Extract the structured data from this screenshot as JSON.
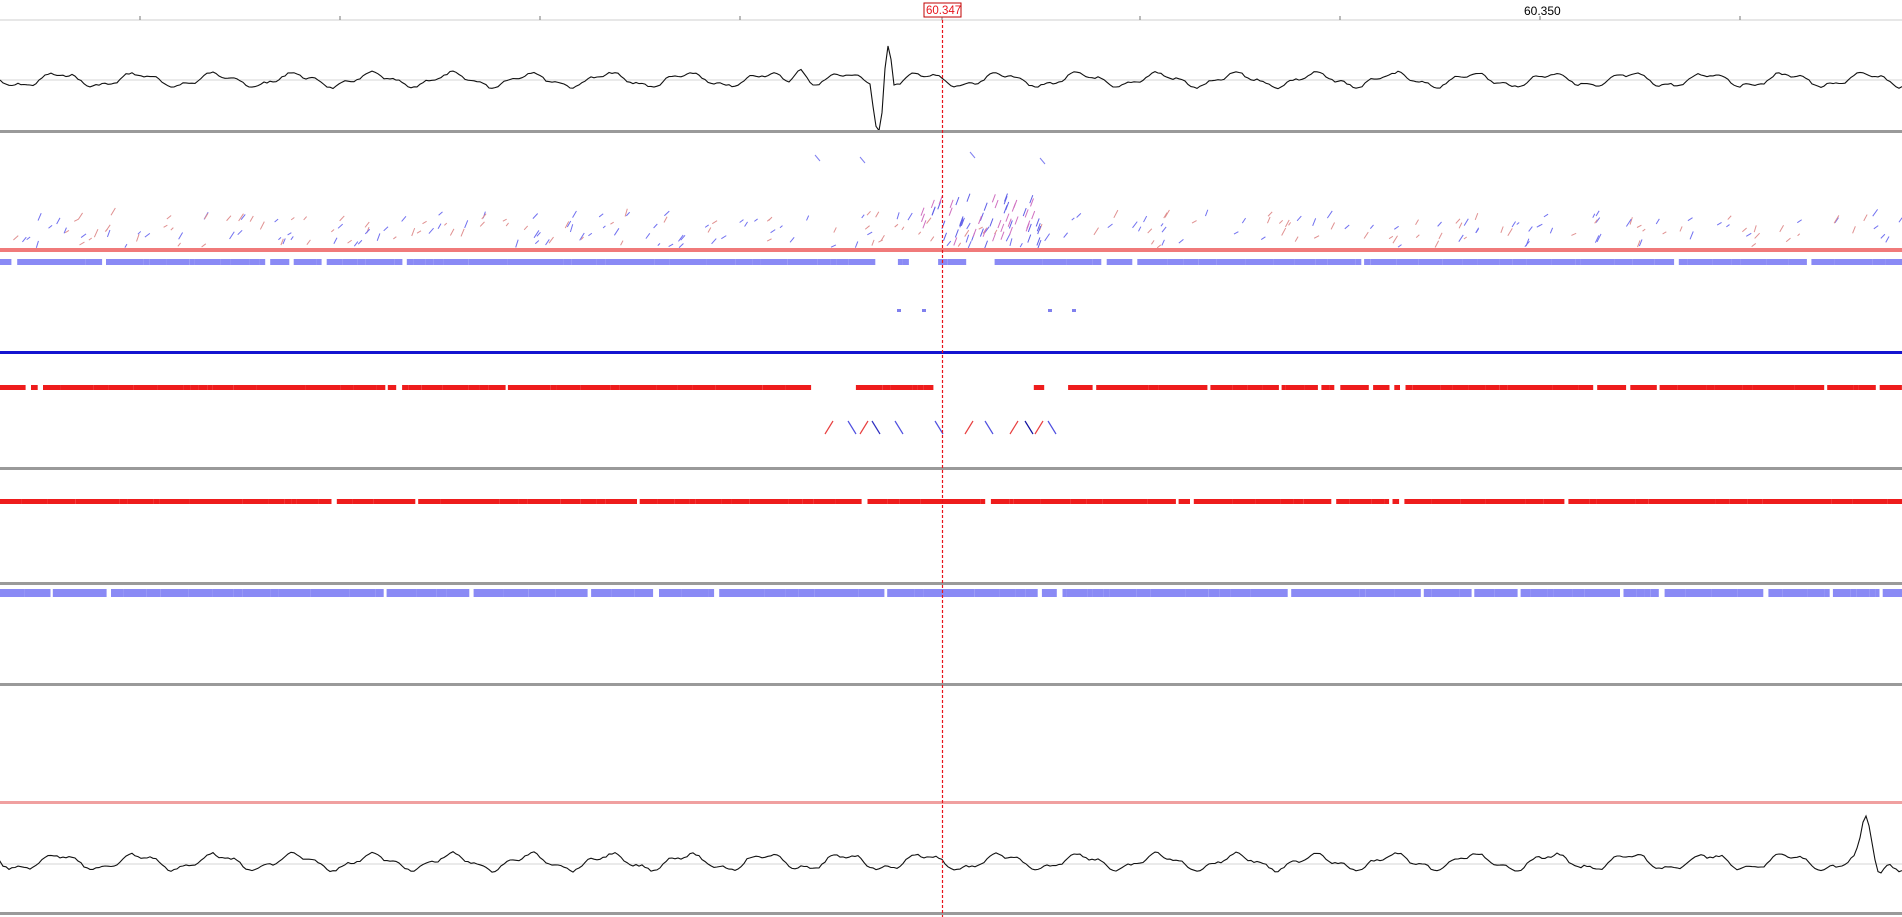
{
  "ruler": {
    "cursor_time_label": "60.347",
    "major_tick_label": "60.350"
  },
  "colors": {
    "cursor": "#e8141c",
    "trace": "#111111",
    "separator": "#9a9a9a",
    "red_band": "#ee1c1c",
    "blue_band": "#3a3ae8",
    "light_blue": "#8a8af5",
    "light_red": "#f59090"
  },
  "tracks": [
    {
      "id": "waveform-top",
      "kind": "waveform"
    },
    {
      "id": "scatter-top",
      "kind": "scatter"
    },
    {
      "id": "tier-blue-red",
      "kind": "interval-tier"
    },
    {
      "id": "tier-red",
      "kind": "interval-tier"
    },
    {
      "id": "tier-blue",
      "kind": "interval-tier"
    },
    {
      "id": "tier-empty",
      "kind": "interval-tier"
    },
    {
      "id": "waveform-bottom",
      "kind": "waveform"
    }
  ]
}
